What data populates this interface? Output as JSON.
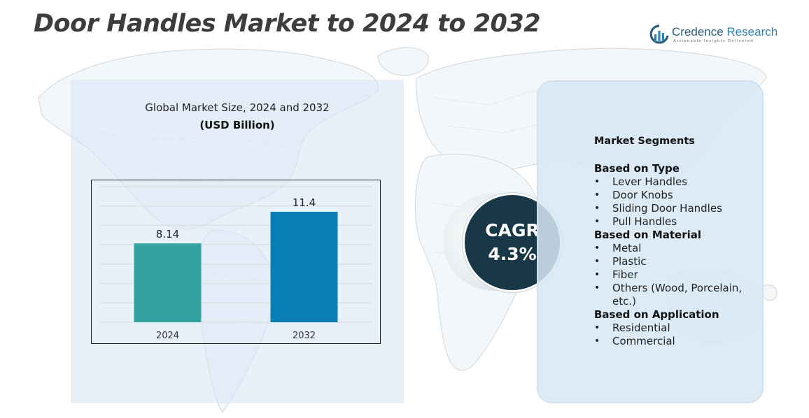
{
  "page": {
    "title": "Door Handles Market to 2024 to 2032"
  },
  "logo": {
    "name_part1": "Credence",
    "name_part2": "Research",
    "tagline": "Actionable Insights Delivered",
    "icon": "credence-logo-icon"
  },
  "chart": {
    "title": "Global Market Size,  2024 and 2032",
    "unit": "(USD Billion)"
  },
  "chart_data": {
    "type": "bar",
    "categories": [
      "2024",
      "2032"
    ],
    "values": [
      8.14,
      11.4
    ],
    "value_labels": [
      "8.14",
      "11.4"
    ],
    "title": "Global Market Size,  2024 and 2032",
    "ylabel": "(USD Billion)",
    "ylim": [
      0,
      14
    ],
    "grid": true,
    "colors": [
      "#33a3a1",
      "#0a7db6"
    ]
  },
  "cagr": {
    "label": "CAGR",
    "value": "4.3%"
  },
  "segments": {
    "title": "Market Segments",
    "groups": [
      {
        "heading": "Based on Type",
        "items": [
          "Lever Handles",
          "Door Knobs",
          "Sliding Door Handles",
          "Pull Handles"
        ]
      },
      {
        "heading": "Based on Material",
        "items": [
          "Metal",
          "Plastic",
          "Fiber",
          "Others (Wood, Porcelain, etc.)"
        ]
      },
      {
        "heading": "Based on Application",
        "items": [
          "Residential",
          "Commercial"
        ]
      }
    ]
  },
  "colors": {
    "title_text": "#3d3d3d",
    "cagr_circle": "#183847",
    "panel_background": "#d6e6f4"
  }
}
